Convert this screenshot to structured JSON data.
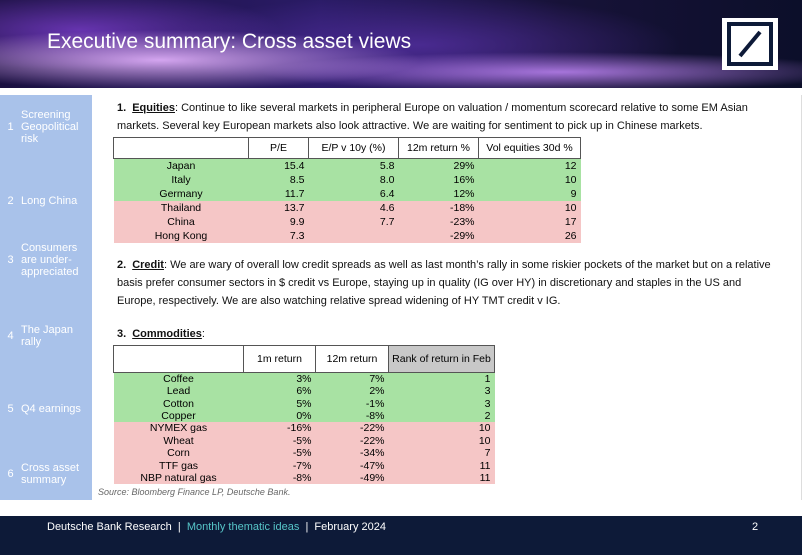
{
  "header": {
    "title": "Executive summary: Cross asset views"
  },
  "sidebar": {
    "items": [
      {
        "number": "1",
        "label": "Screening Geopolitical risk"
      },
      {
        "number": "2",
        "label": "Long China"
      },
      {
        "number": "3",
        "label": "Consumers are under-appreciated"
      },
      {
        "number": "4",
        "label": "The Japan rally"
      },
      {
        "number": "5",
        "label": "Q4 earnings"
      },
      {
        "number": "6",
        "label": "Cross asset summary"
      }
    ]
  },
  "sections": [
    {
      "number": "1.",
      "heading": "Equities",
      "text": ": Continue to like several markets in peripheral Europe on valuation / momentum scorecard relative to some EM Asian markets. Several key European markets also look attractive. We are waiting for sentiment to pick up in Chinese markets."
    },
    {
      "number": "2.",
      "heading": "Credit",
      "text": ": We are wary of overall low credit spreads as well as last month’s rally in some riskier pockets of the market but on a relative basis prefer consumer sectors in $ credit vs Europe, staying up in quality (IG over HY) in discretionary and staples in the US and Europe, respectively. We are also watching relative spread widening of HY TMT credit v IG."
    },
    {
      "number": "3.",
      "heading": "Commodities",
      "text": ":"
    }
  ],
  "tables": [
    {
      "columns": [
        "",
        "P/E",
        "E/P v 10y (%)",
        "12m return %",
        "Vol equities 30d %"
      ],
      "rows": [
        [
          "Japan",
          "15.4",
          "5.8",
          "29%",
          "12"
        ],
        [
          "Italy",
          "8.5",
          "8.0",
          "16%",
          "10"
        ],
        [
          "Germany",
          "11.7",
          "6.4",
          "12%",
          "9"
        ],
        [
          "Thailand",
          "13.7",
          "4.6",
          "-18%",
          "10"
        ],
        [
          "China",
          "9.9",
          "7.7",
          "-23%",
          "17"
        ],
        [
          "Hong Kong",
          "7.3",
          "",
          "-29%",
          "26"
        ]
      ],
      "row_colors": [
        "#a8e2a3",
        "#a8e2a3",
        "#a8e2a3",
        "#f5c6c6",
        "#f5c6c6",
        "#f5c6c6"
      ]
    },
    {
      "columns": [
        "",
        "1m return",
        "12m return",
        "Rank of return in Feb"
      ],
      "rows": [
        [
          "Coffee",
          "3%",
          "7%",
          "1"
        ],
        [
          "Lead",
          "6%",
          "2%",
          "3"
        ],
        [
          "Cotton",
          "5%",
          "-1%",
          "3"
        ],
        [
          "Copper",
          "0%",
          "-8%",
          "2"
        ],
        [
          "NYMEX gas",
          "-16%",
          "-22%",
          "10"
        ],
        [
          "Wheat",
          "-5%",
          "-22%",
          "10"
        ],
        [
          "Corn",
          "-5%",
          "-34%",
          "7"
        ],
        [
          "TTF gas",
          "-7%",
          "-47%",
          "11"
        ],
        [
          "NBP natural gas",
          "-8%",
          "-49%",
          "11"
        ]
      ],
      "row_colors": [
        "#a8e2a3",
        "#a8e2a3",
        "#a8e2a3",
        "#a8e2a3",
        "#f5c6c6",
        "#f5c6c6",
        "#f5c6c6",
        "#f5c6c6",
        "#f5c6c6"
      ]
    }
  ],
  "source": "Source: Bloomberg Finance LP, Deutsche Bank.",
  "footer": {
    "brand": "Deutsche Bank Research",
    "series": "Monthly thematic ideas",
    "date": "February 2024",
    "page": "2"
  }
}
